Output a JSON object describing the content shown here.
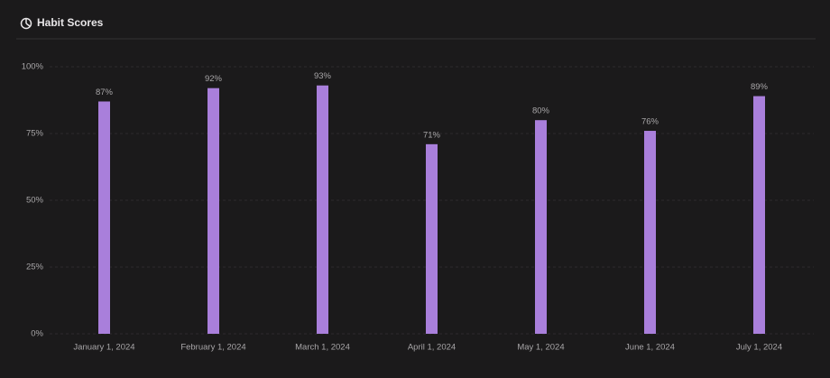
{
  "chart_data": {
    "type": "bar",
    "title": "Habit Scores",
    "categories": [
      "January 1, 2024",
      "February 1, 2024",
      "March 1, 2024",
      "April 1, 2024",
      "May 1, 2024",
      "June 1, 2024",
      "July 1, 2024"
    ],
    "values": [
      87,
      92,
      93,
      71,
      80,
      76,
      89
    ],
    "value_labels": [
      "87%",
      "92%",
      "93%",
      "71%",
      "80%",
      "76%",
      "89%"
    ],
    "color": "#a97fdb",
    "ylim": [
      0,
      100
    ],
    "yticks": [
      {
        "value": 0,
        "label": "0%"
      },
      {
        "value": 25,
        "label": "25%"
      },
      {
        "value": 50,
        "label": "50%"
      },
      {
        "value": 75,
        "label": "75%"
      },
      {
        "value": 100,
        "label": "100%"
      }
    ],
    "grid": true
  }
}
